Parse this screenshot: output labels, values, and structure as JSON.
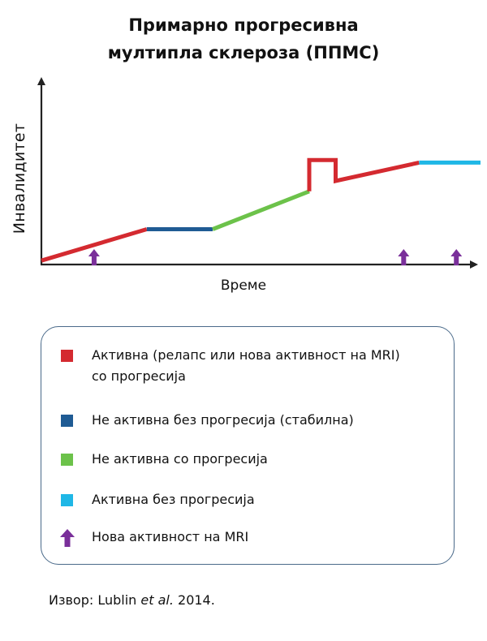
{
  "title": {
    "line1": "Примарно прогресивна",
    "line2": "мултипла склероза (ППМС)"
  },
  "axes": {
    "y_label": "Инвалидитет",
    "x_label": "Време"
  },
  "colors": {
    "active_with_progression": "#d42a30",
    "not_active_without_progression": "#1f5b94",
    "not_active_with_progression": "#6cc24a",
    "active_without_progression": "#1fb7e6",
    "new_mri_activity": "#7a2f9a",
    "axis": "#222222"
  },
  "course": {
    "x_range": [
      0,
      100
    ],
    "y_range": [
      0,
      100
    ],
    "segments": [
      {
        "status": "active_with_progression",
        "points": [
          [
            0,
            3
          ],
          [
            24,
            27
          ]
        ]
      },
      {
        "status": "not_active_without_progression",
        "points": [
          [
            24,
            27
          ],
          [
            39,
            27
          ]
        ]
      },
      {
        "status": "not_active_with_progression",
        "points": [
          [
            39,
            27
          ],
          [
            61,
            56
          ]
        ]
      },
      {
        "status": "active_with_progression",
        "points": [
          [
            61,
            56
          ],
          [
            61,
            80
          ],
          [
            67,
            80
          ],
          [
            67,
            64
          ],
          [
            86,
            78
          ]
        ]
      },
      {
        "status": "active_without_progression",
        "points": [
          [
            86,
            78
          ],
          [
            100,
            78
          ]
        ]
      }
    ],
    "mri_arrows_x": [
      12,
      82.5,
      94.5
    ]
  },
  "legend": {
    "items": [
      {
        "key": "active_with_progression",
        "line1": "Активна (релапс или нова активност на MRI)",
        "line2": "со прогресија"
      },
      {
        "key": "not_active_without_progression",
        "line1": "Не активна без прогресија (стабилна)"
      },
      {
        "key": "not_active_with_progression",
        "line1": "Не активна со прогресија"
      },
      {
        "key": "active_without_progression",
        "line1": "Активна без прогресија"
      },
      {
        "key": "new_mri_activity",
        "line1": "Нова активност на MRI"
      }
    ]
  },
  "source": {
    "prefix": "Извор: Lublin ",
    "italic": "et al.",
    "suffix": " 2014."
  }
}
